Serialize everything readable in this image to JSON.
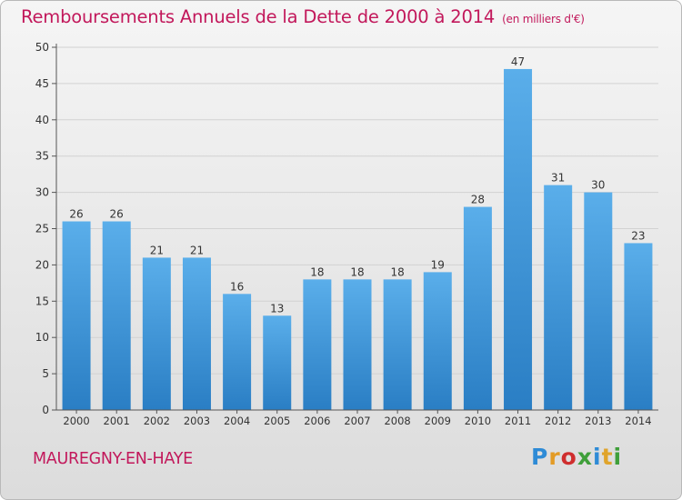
{
  "title": "Remboursements Annuels de la Dette de 2000 à 2014",
  "unit_label": "(en milliers d'€)",
  "commune": "MAUREGNY-EN-HAYE",
  "logo": {
    "text": "Proxiti",
    "letters": [
      "P",
      "r",
      "o",
      "x",
      "i",
      "t",
      "i"
    ],
    "colors": [
      "#2e8bd6",
      "#e39b25",
      "#cf2e2e",
      "#3f9f3a",
      "#2e8bd6",
      "#e0a42b",
      "#3f9f3a"
    ]
  },
  "colors": {
    "title": "#c2185b",
    "bar_top": "#5aaeea",
    "bar_bottom": "#2a7ec4",
    "axis": "#555555",
    "grid": "#d2d2d2"
  },
  "chart_data": {
    "type": "bar",
    "title": "Remboursements Annuels de la Dette de 2000 à 2014",
    "xlabel": "",
    "ylabel": "",
    "categories": [
      "2000",
      "2001",
      "2002",
      "2003",
      "2004",
      "2005",
      "2006",
      "2007",
      "2008",
      "2009",
      "2010",
      "2011",
      "2012",
      "2013",
      "2014"
    ],
    "values": [
      26,
      26,
      21,
      21,
      16,
      13,
      18,
      18,
      18,
      19,
      28,
      47,
      31,
      30,
      23
    ],
    "ylim": [
      0,
      50
    ],
    "yticks": [
      0,
      5,
      10,
      15,
      20,
      25,
      30,
      35,
      40,
      45,
      50
    ],
    "grid": true,
    "legend": "none"
  }
}
